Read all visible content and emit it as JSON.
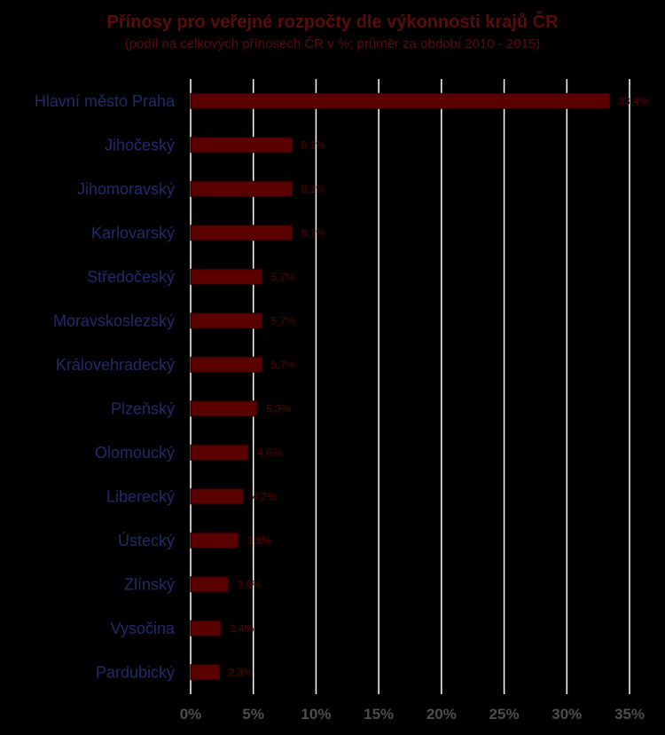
{
  "chart_data": {
    "type": "bar",
    "orientation": "horizontal",
    "title": "Přínosy pro veřejné rozpočty dle výkonnosti krajů ČR",
    "subtitle": "(podíl na celkových přínosech ČR v %; průměr za období 2010 - 2015)",
    "categories": [
      "Hlavní město Praha",
      "Jihočeský",
      "Jihomoravský",
      "Karlovarský",
      "Středočeský",
      "Moravskoslezský",
      "Královehradecký",
      "Plzeňský",
      "Olomoucký",
      "Liberecký",
      "Ústecký",
      "Zlínský",
      "Vysočina",
      "Pardubický"
    ],
    "values": [
      33.4,
      8.1,
      8.1,
      8.1,
      5.7,
      5.7,
      5.7,
      5.3,
      4.6,
      4.2,
      3.8,
      3.0,
      2.4,
      2.3
    ],
    "data_labels": [
      "33,4%",
      "8,1%",
      "8,1%",
      "8,1%",
      "5,7%",
      "5,7%",
      "5,7%",
      "5,3%",
      "4,6%",
      "4,2%",
      "3,8%",
      "3,0%",
      "2,4%",
      "2,3%"
    ],
    "x_ticks": [
      0,
      5,
      10,
      15,
      20,
      25,
      30,
      35
    ],
    "x_tick_labels": [
      "0%",
      "5%",
      "10%",
      "15%",
      "20%",
      "25%",
      "30%",
      "35%"
    ],
    "xlim": [
      0,
      35
    ],
    "grid": true,
    "legend": false,
    "colors": {
      "background": "#000000",
      "bar": "#5a0000",
      "bar_stroke": "#2a0000",
      "title": "#5a0b0b",
      "category_label": "#1f2b6b",
      "data_label": "#5a0000",
      "gridline": "#ffffff",
      "tick_label": "#4d4d4d"
    }
  }
}
